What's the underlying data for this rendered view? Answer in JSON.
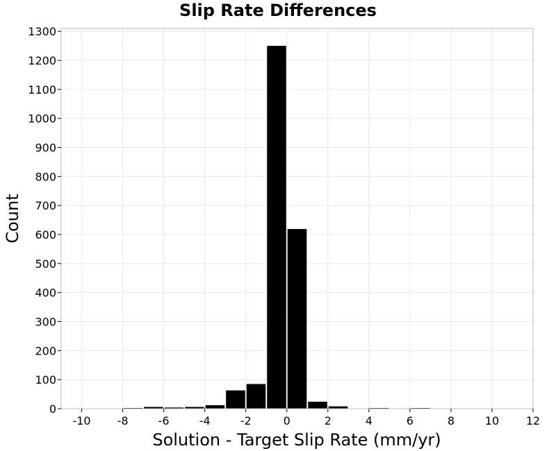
{
  "chart_data": {
    "type": "bar",
    "title": "Slip Rate Differences",
    "xlabel": "Solution - Target Slip Rate (mm/yr)",
    "ylabel": "Count",
    "xlim": [
      -11,
      12
    ],
    "ylim": [
      0,
      1310
    ],
    "xticks": [
      -10,
      -8,
      -6,
      -4,
      -2,
      0,
      2,
      4,
      6,
      8,
      10,
      12
    ],
    "yticks": [
      0,
      100,
      200,
      300,
      400,
      500,
      600,
      700,
      800,
      900,
      1000,
      1100,
      1200,
      1300
    ],
    "bin_width": 1,
    "bins": [
      {
        "x": -10,
        "count": 0
      },
      {
        "x": -9,
        "count": 0
      },
      {
        "x": -8,
        "count": 1
      },
      {
        "x": -7,
        "count": 6
      },
      {
        "x": -6,
        "count": 4
      },
      {
        "x": -5,
        "count": 6
      },
      {
        "x": -4,
        "count": 12
      },
      {
        "x": -3,
        "count": 63
      },
      {
        "x": -2,
        "count": 85
      },
      {
        "x": -1,
        "count": 1250
      },
      {
        "x": 0,
        "count": 619
      },
      {
        "x": 1,
        "count": 24
      },
      {
        "x": 2,
        "count": 8
      },
      {
        "x": 3,
        "count": 0
      },
      {
        "x": 4,
        "count": 2
      },
      {
        "x": 5,
        "count": 0
      },
      {
        "x": 6,
        "count": 1
      },
      {
        "x": 7,
        "count": 0
      },
      {
        "x": 8,
        "count": 0
      },
      {
        "x": 9,
        "count": 0
      },
      {
        "x": 10,
        "count": 0
      }
    ],
    "bar_color": "#000000",
    "grid": true,
    "grid_color": "#e8e8e8",
    "frame_color": "#bbbbbb"
  }
}
